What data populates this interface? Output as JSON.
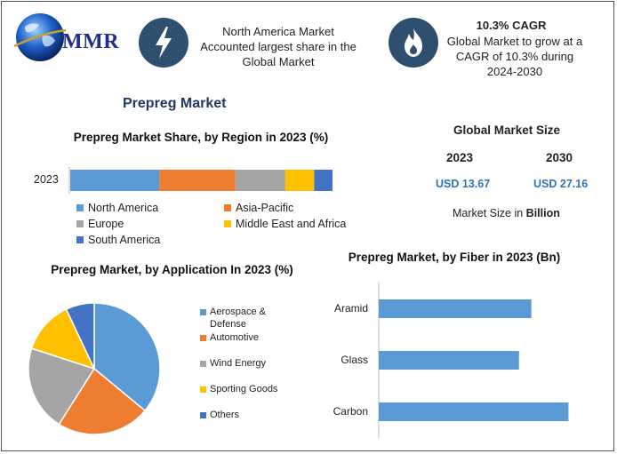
{
  "header": {
    "logo_text": "MMR",
    "box1_text": "North America Market Accounted largest share in the Global Market",
    "box2_title": "10.3% CAGR",
    "box2_text": "Global Market to grow at a CAGR of 10.3% during 2024-2030"
  },
  "main_title": "Prepreg Market",
  "market_size": {
    "title": "Global Market Size",
    "year1": "2023",
    "year2": "2030",
    "value1": "USD 13.67",
    "value2": "USD 27.16",
    "note_prefix": "Market Size in ",
    "note_unit": "Billion"
  },
  "colors": {
    "blue": "#5b9bd5",
    "orange": "#ed7d31",
    "gray": "#a5a5a5",
    "yellow": "#ffc000",
    "darkblue": "#4472c4",
    "icon_bg": "#2f4f6f"
  },
  "icons": [
    "globe-icon",
    "lightning-icon",
    "flame-icon"
  ],
  "chart_data": [
    {
      "type": "bar",
      "orientation": "horizontal-stacked",
      "title": "Prepreg Market Share, by Region in 2023 (%)",
      "categories": [
        "2023"
      ],
      "series": [
        {
          "name": "North America",
          "values": [
            34
          ]
        },
        {
          "name": "Asia-Pacific",
          "values": [
            29
          ]
        },
        {
          "name": "Europe",
          "values": [
            19
          ]
        },
        {
          "name": "Middle East and Africa",
          "values": [
            11
          ]
        },
        {
          "name": "South America",
          "values": [
            7
          ]
        }
      ],
      "legend": "bottom"
    },
    {
      "type": "pie",
      "title": "Prepreg Market, by Application In 2023 (%)",
      "labels": [
        "Aerospace & Defense",
        "Automotive",
        "Wind Energy",
        "Sporting Goods",
        "Others"
      ],
      "values": [
        36,
        23,
        21,
        13,
        7
      ],
      "legend": "right"
    },
    {
      "type": "bar",
      "orientation": "horizontal",
      "title": "Prepreg Market, by Fiber in 2023 (Bn)",
      "categories": [
        "Aramid",
        "Glass",
        "Carbon"
      ],
      "values": [
        3.7,
        3.4,
        4.6
      ],
      "xlim": [
        0,
        5
      ]
    }
  ]
}
